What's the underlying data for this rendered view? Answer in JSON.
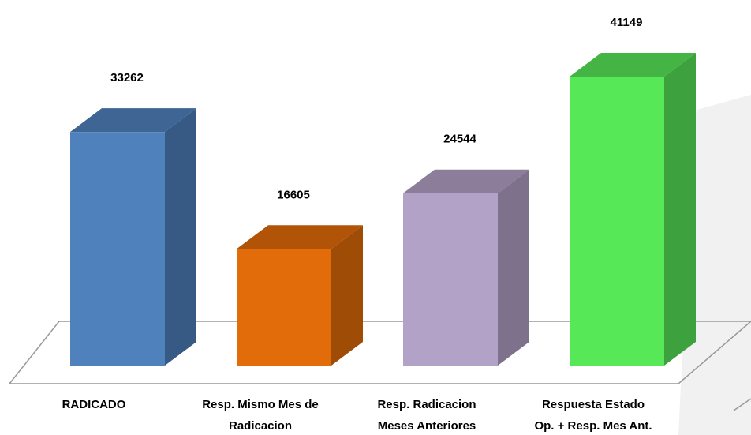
{
  "chart_data": {
    "type": "bar3d",
    "categories": [
      "RADICADO",
      "Resp. Mismo Mes de\nRadicacion",
      "Resp. Radicacion\nMeses Anteriores",
      "Respuesta Estado\nOp. + Resp. Mes Ant."
    ],
    "values": [
      33262,
      16605,
      24544,
      41149
    ],
    "colors": [
      "#4f81bd",
      "#e36c0a",
      "#b3a2c7",
      "#57e857"
    ]
  }
}
